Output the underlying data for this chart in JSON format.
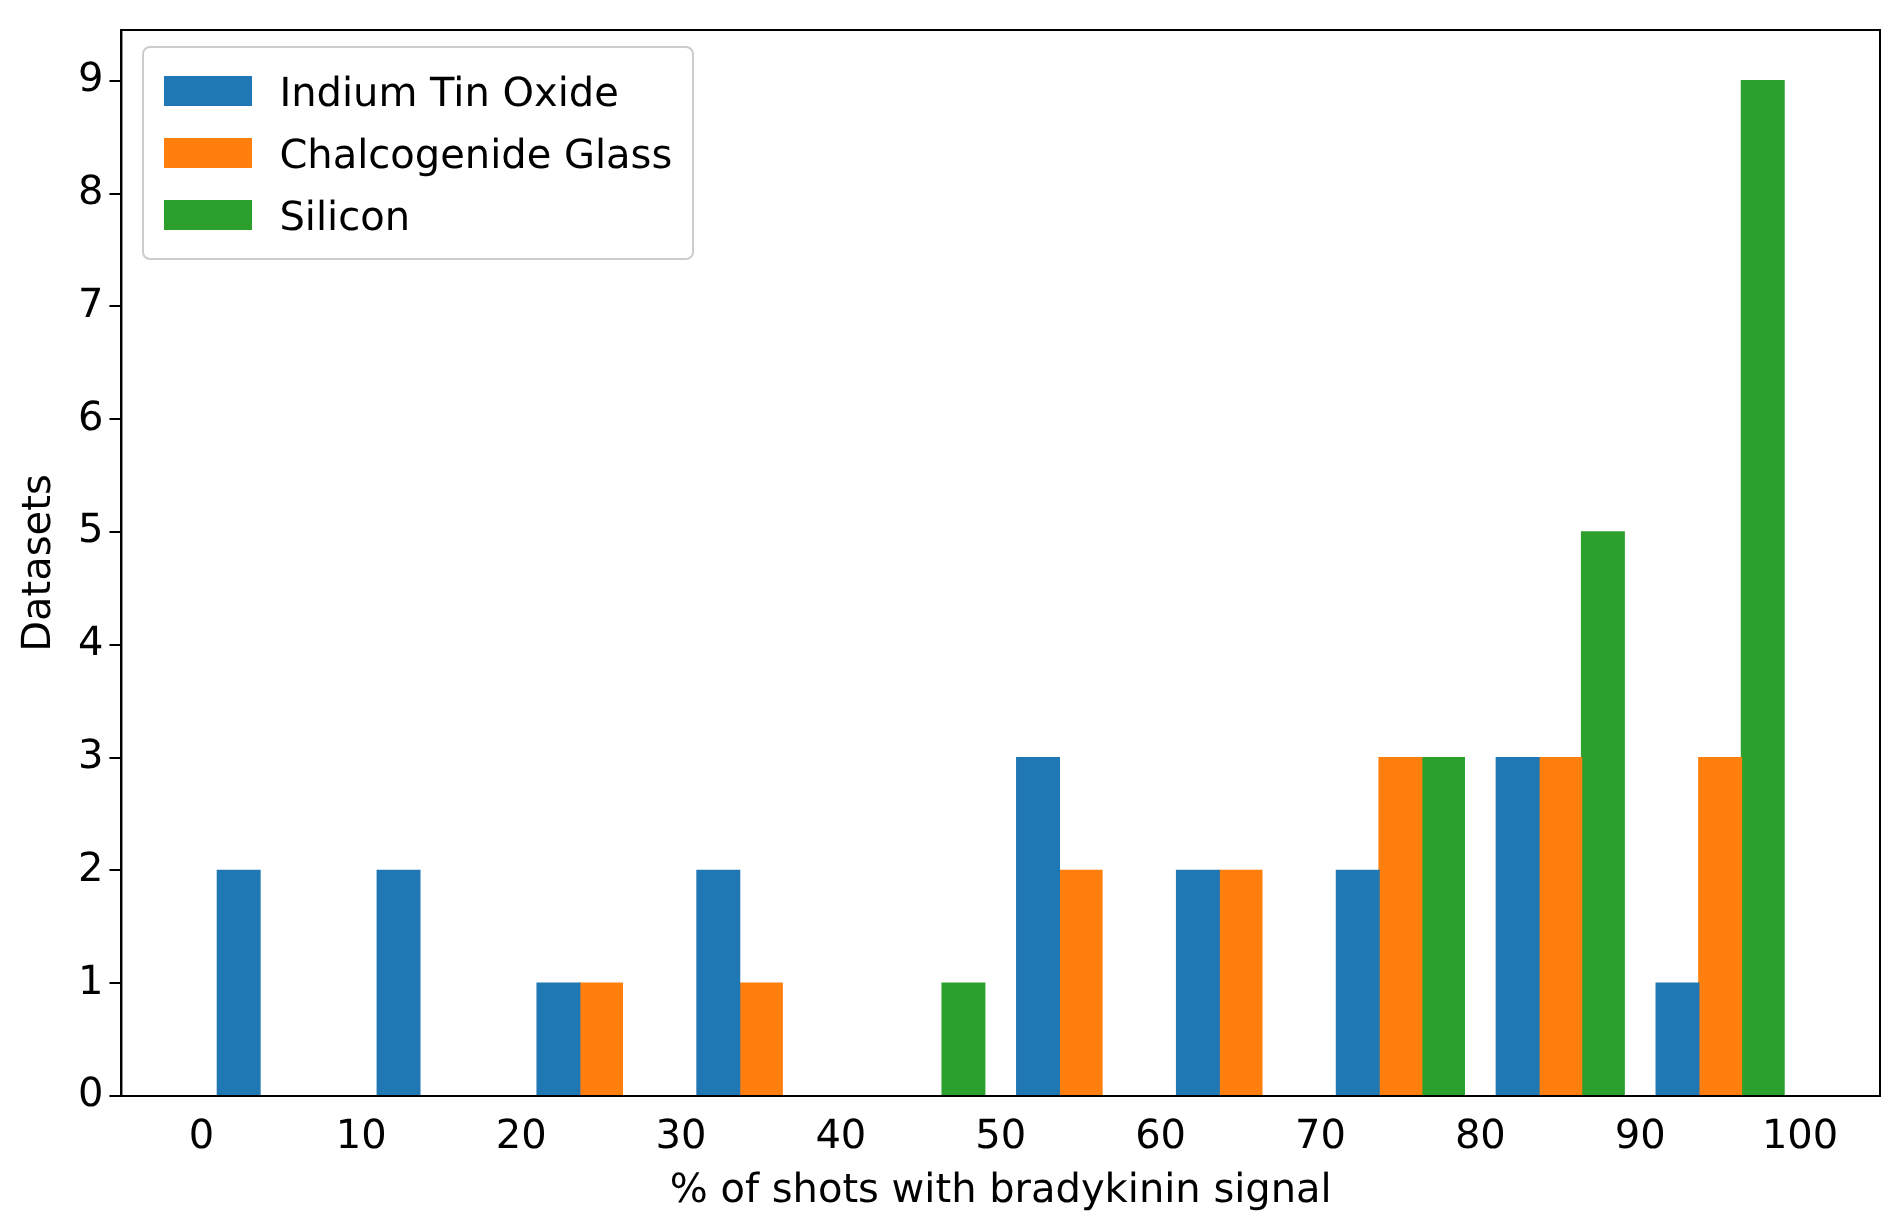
{
  "chart_data": {
    "type": "histogram",
    "xlabel": "% of shots with bradykinin signal",
    "ylabel": "Datasets",
    "bins": [
      0,
      10,
      20,
      30,
      40,
      50,
      60,
      70,
      80,
      90,
      100
    ],
    "series": [
      {
        "name": "Indium Tin Oxide",
        "color": "#1f77b4",
        "values": [
          2,
          2,
          1,
          2,
          0,
          3,
          2,
          2,
          3,
          1
        ]
      },
      {
        "name": "Chalcogenide Glass",
        "color": "#ff7f0e",
        "values": [
          0,
          0,
          1,
          1,
          0,
          2,
          2,
          3,
          3,
          3
        ]
      },
      {
        "name": "Silicon",
        "color": "#2ca02c",
        "values": [
          0,
          0,
          0,
          0,
          1,
          0,
          0,
          3,
          5,
          9
        ]
      }
    ],
    "xlim": [
      -5,
      105
    ],
    "xticks": [
      0,
      10,
      20,
      30,
      40,
      50,
      60,
      70,
      80,
      90,
      100
    ],
    "ylim": [
      0,
      9.45
    ],
    "yticks": [
      0,
      1,
      2,
      3,
      4,
      5,
      6,
      7,
      8,
      9
    ],
    "grid": false,
    "legend": "top left"
  }
}
